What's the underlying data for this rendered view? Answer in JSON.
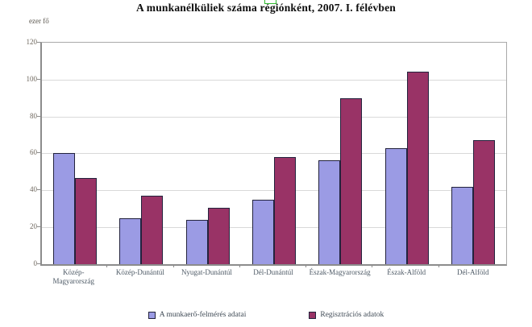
{
  "chart_data": {
    "type": "bar",
    "title": "A munkanélküliek száma régiónként, 2007. I. félévben",
    "ylabel": "ezer fő",
    "xlabel": "",
    "categories": [
      "Közép-Magyarország",
      "Közép-Dunántúl",
      "Nyugat-Dunántúl",
      "Dél-Dunántúl",
      "Észak-Magyarország",
      "Észak-Alföld",
      "Dél-Alföld"
    ],
    "series": [
      {
        "name": "A munkaerő-felmérés adatai",
        "color": "#9b9be4",
        "values": [
          60,
          25,
          24,
          35,
          56.5,
          63,
          42
        ]
      },
      {
        "name": "Regisztrációs adatok",
        "color": "#993366",
        "values": [
          46.5,
          37,
          30.5,
          58,
          90,
          104.5,
          67
        ]
      }
    ],
    "ylim": [
      0,
      120
    ],
    "ytick_step": 20,
    "grid": true,
    "legend_position": "bottom"
  },
  "colors": {
    "bar_border": "#23233d",
    "gridline": "#d9d9d9",
    "axis": "#8c8c8c",
    "title_text": "#0d0d0d",
    "tick_text": "#6e675d",
    "category_text": "#4e5a66",
    "artifact_green": "#2db82d"
  }
}
